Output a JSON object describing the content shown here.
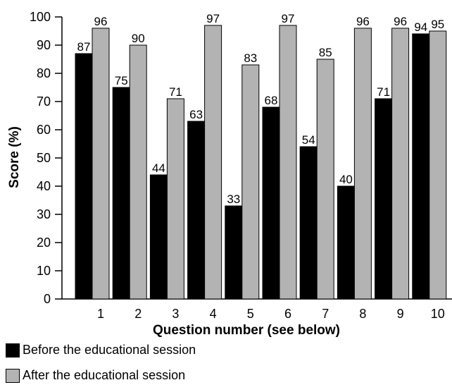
{
  "chart_data": {
    "type": "bar",
    "xlabel": "Question number (see below)",
    "ylabel": "Score (%)",
    "ylim": [
      0,
      100
    ],
    "yticks": [
      0,
      10,
      20,
      30,
      40,
      50,
      60,
      70,
      80,
      90,
      100
    ],
    "categories": [
      "1",
      "2",
      "3",
      "4",
      "5",
      "6",
      "7",
      "8",
      "9",
      "10"
    ],
    "series": [
      {
        "name": "Before the educational session",
        "color": "#000000",
        "values": [
          87,
          75,
          44,
          63,
          33,
          68,
          54,
          40,
          71,
          94
        ]
      },
      {
        "name": "After the educational session",
        "color": "#b3b3b3",
        "values": [
          96,
          90,
          71,
          97,
          83,
          97,
          85,
          96,
          96,
          95
        ]
      }
    ],
    "grid": false,
    "legend_position": "bottom-left"
  }
}
